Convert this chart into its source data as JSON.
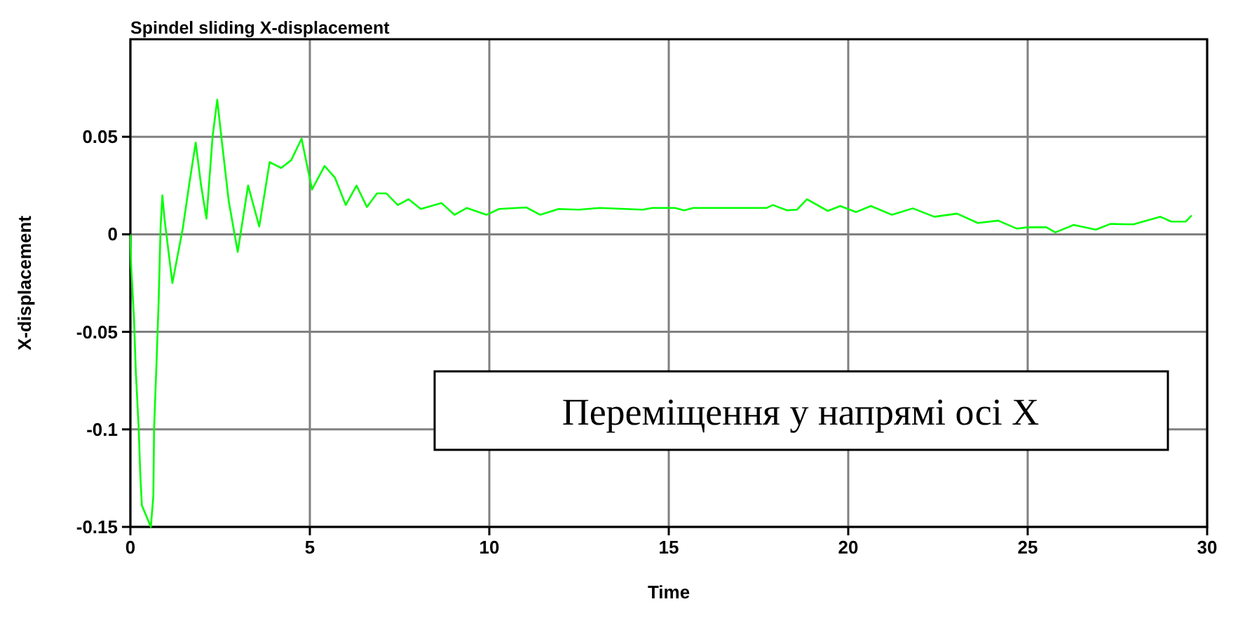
{
  "chart_data": {
    "type": "line",
    "title": "Spindel sliding X-displacement",
    "xlabel": "Time",
    "ylabel": "X-displacement",
    "annotations": [
      "Переміщення у напрямі осі X"
    ],
    "xlim": [
      0,
      30
    ],
    "xticks": [
      0,
      5,
      10,
      15,
      20,
      25,
      30
    ],
    "ylim": [
      -0.15,
      0.1
    ],
    "yticks": [
      -0.15,
      -0.1,
      -0.05,
      0,
      0.05
    ],
    "grid": true,
    "marker": "none",
    "line_style": "solid",
    "series": [
      {
        "color": "#00ff00",
        "x": [
          0,
          0.02,
          0.1,
          0.15,
          0.23,
          0.28,
          0.32,
          0.57,
          0.64,
          0.66,
          0.73,
          0.79,
          0.84,
          0.89,
          0.95,
          1.17,
          1.46,
          1.65,
          1.82,
          1.97,
          2.12,
          2.29,
          2.42,
          2.54,
          2.74,
          2.99,
          3.28,
          3.59,
          3.88,
          4.2,
          4.48,
          4.77,
          5.06,
          5.41,
          5.7,
          6.0,
          6.3,
          6.59,
          6.87,
          7.13,
          7.45,
          7.75,
          8.09,
          8.67,
          9.03,
          9.37,
          9.92,
          10.27,
          11.03,
          11.42,
          11.93,
          12.5,
          13.07,
          14.28,
          14.54,
          15.17,
          15.43,
          15.68,
          17.72,
          17.9,
          18.3,
          18.57,
          18.85,
          19.43,
          19.78,
          20.22,
          20.63,
          21.22,
          21.8,
          22.4,
          23.03,
          23.61,
          24.18,
          24.7,
          25.01,
          25.52,
          25.77,
          26.28,
          26.9,
          27.3,
          27.94,
          28.7,
          29.0,
          29.4,
          29.57
        ],
        "values": [
          0,
          -0.016,
          -0.043,
          -0.07,
          -0.099,
          -0.125,
          -0.139,
          -0.15,
          -0.134,
          -0.1,
          -0.065,
          -0.033,
          0.003,
          0.02,
          0.008,
          -0.025,
          0.003,
          0.027,
          0.047,
          0.025,
          0.008,
          0.05,
          0.069,
          0.049,
          0.017,
          -0.009,
          0.025,
          0.004,
          0.037,
          0.034,
          0.038,
          0.049,
          0.023,
          0.035,
          0.029,
          0.015,
          0.025,
          0.014,
          0.021,
          0.021,
          0.015,
          0.018,
          0.013,
          0.016,
          0.01,
          0.0135,
          0.01,
          0.013,
          0.0138,
          0.01,
          0.013,
          0.0126,
          0.0135,
          0.0126,
          0.0135,
          0.0135,
          0.0123,
          0.0135,
          0.0135,
          0.015,
          0.0123,
          0.0126,
          0.018,
          0.012,
          0.0145,
          0.0114,
          0.0145,
          0.01,
          0.0133,
          0.009,
          0.0106,
          0.0058,
          0.007,
          0.0029,
          0.0036,
          0.0036,
          0.001,
          0.0048,
          0.0024,
          0.0053,
          0.0051,
          0.009,
          0.0065,
          0.0065,
          0.0097
        ]
      }
    ]
  }
}
